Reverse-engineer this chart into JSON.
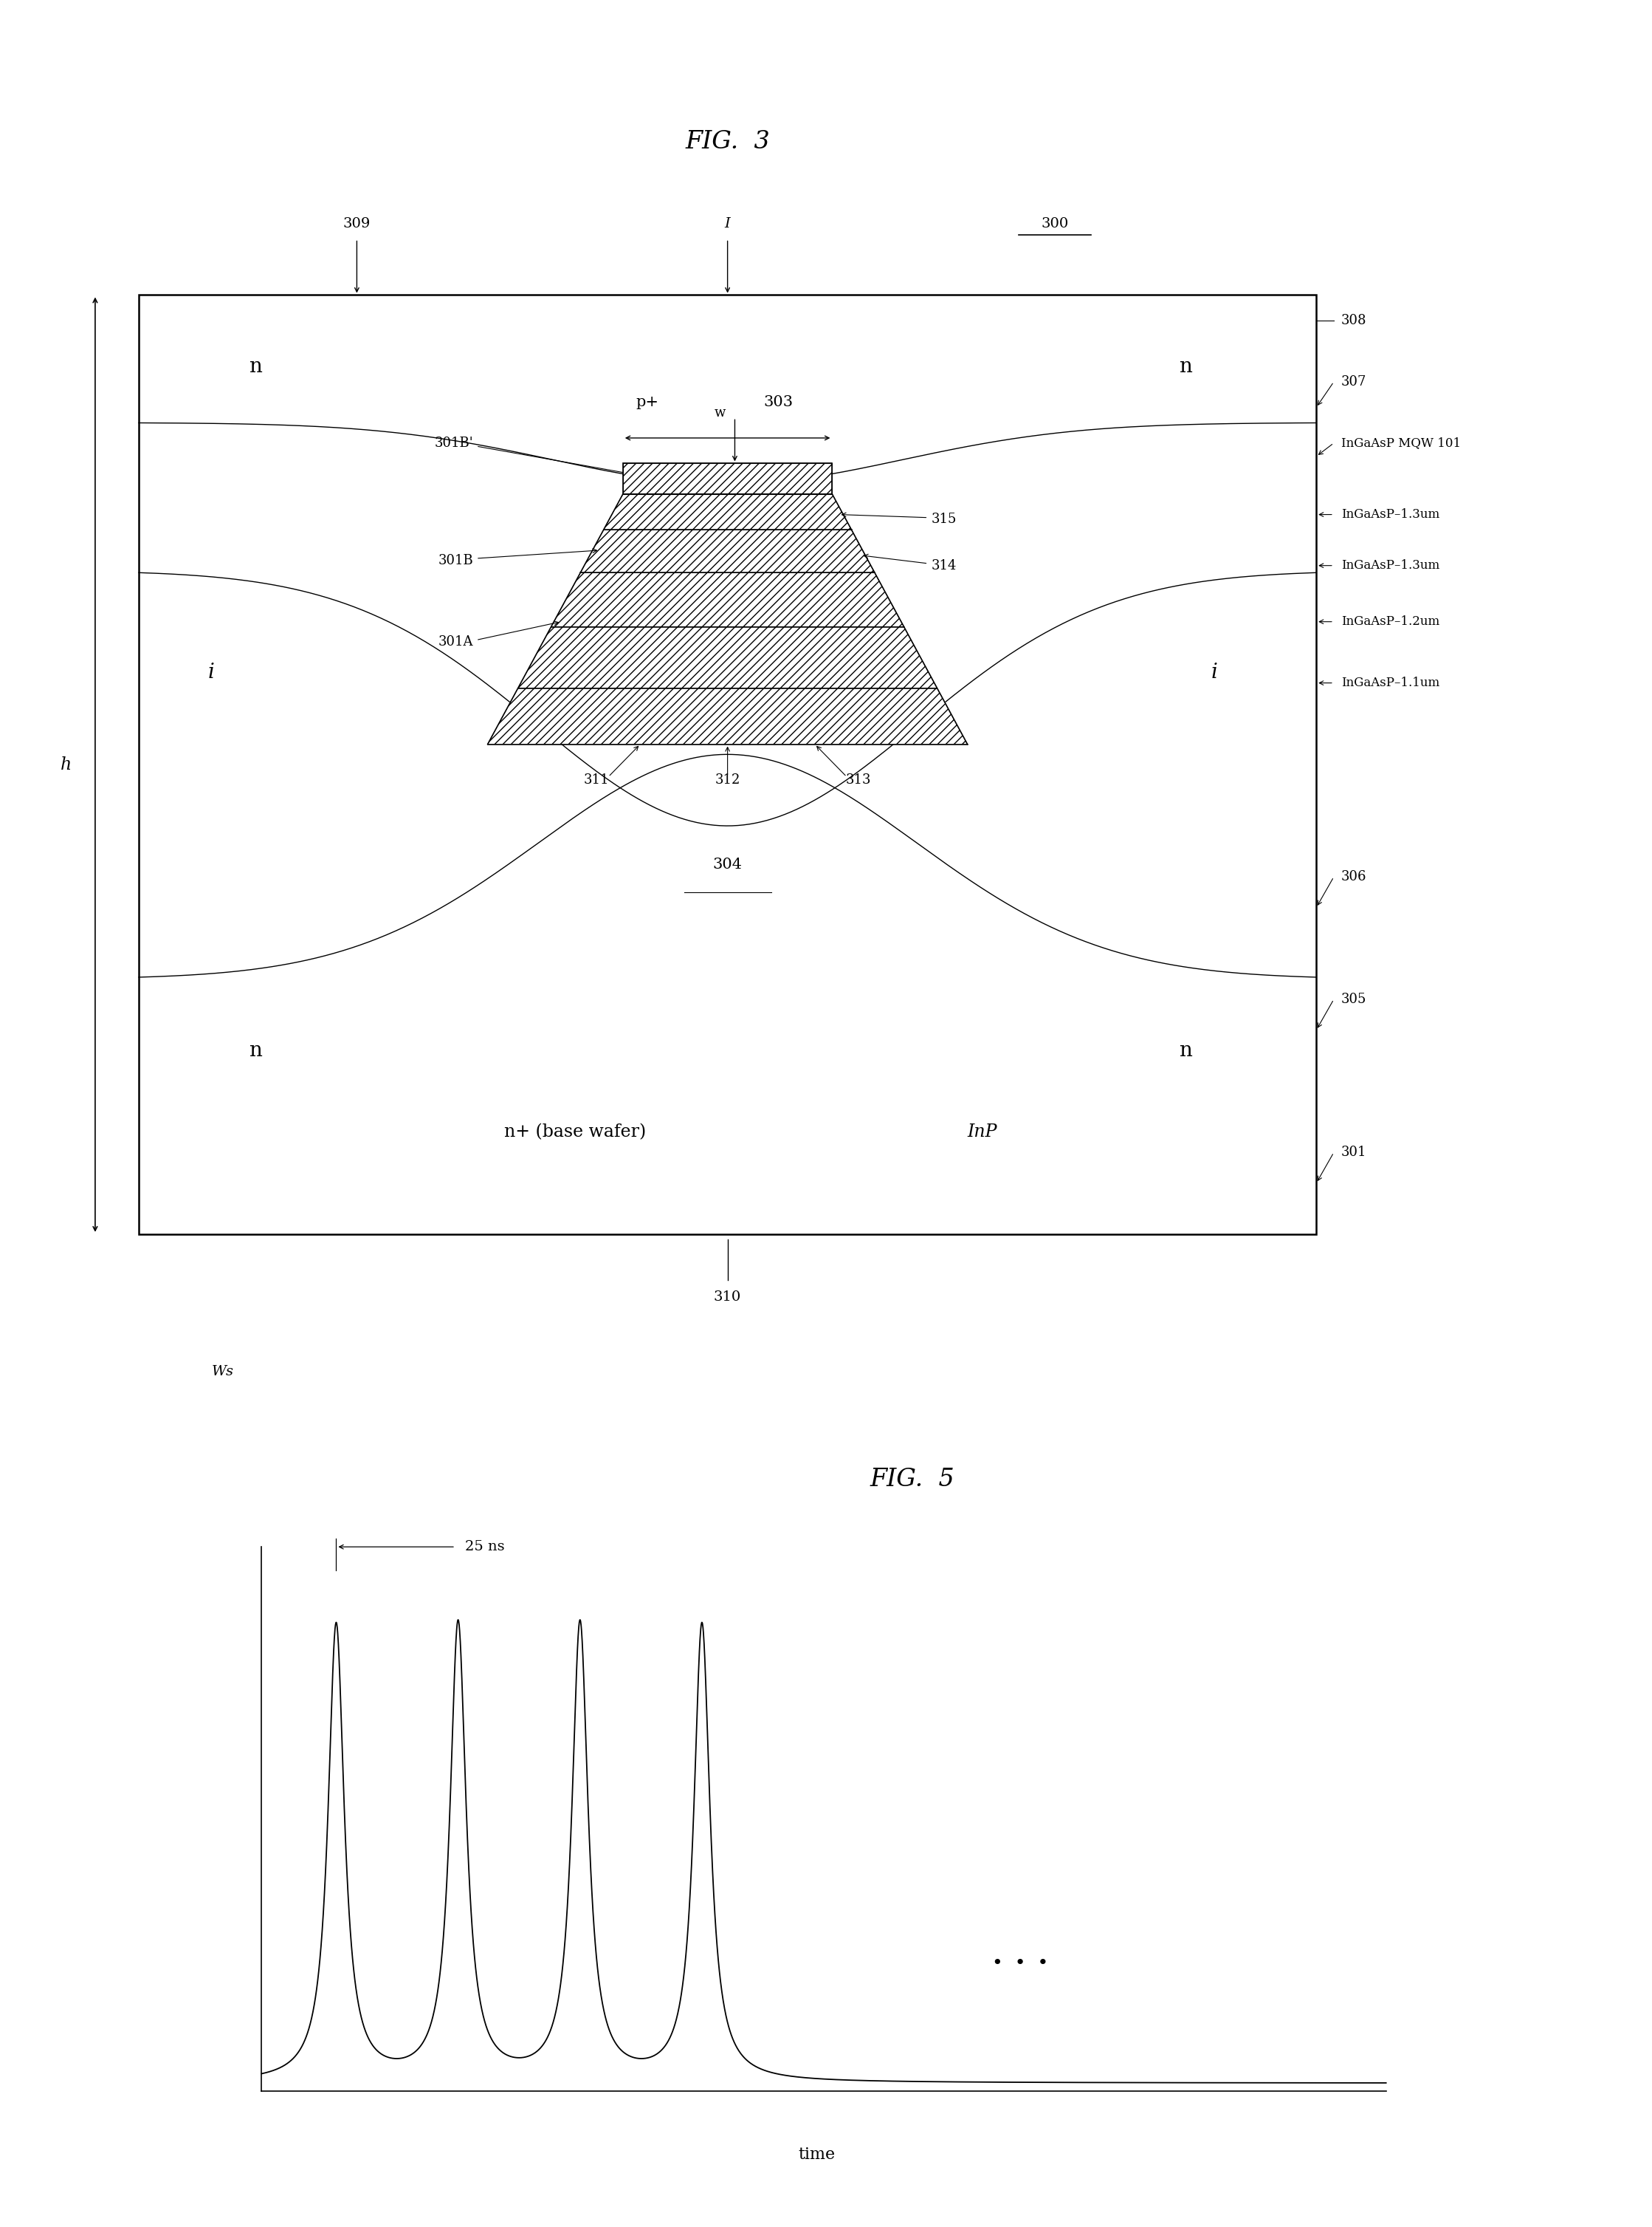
{
  "fig3_title": "FIG.  3",
  "fig5_title": "FIG.  5",
  "bg_color": "#ffffff",
  "line_color": "#000000",
  "labels": {
    "309": "309",
    "I": "I",
    "300": "300",
    "308": "308",
    "307": "307",
    "ingaasp_mqw": "InGaAsP MQW 101",
    "ingaasp_13a": "InGaAsP–1.3um",
    "ingaasp_13b": "InGaAsP–1.3um",
    "ingaasp_12": "InGaAsP–1.2um",
    "ingaasp_11": "InGaAsP–1.1um",
    "306": "306",
    "305": "305",
    "301": "301",
    "304": "304",
    "n_plus": "n+ (base wafer)",
    "InP": "InP",
    "p_plus": "p+",
    "303": "303",
    "315": "315",
    "314": "314",
    "301B_prime": "301B'",
    "301B": "301B",
    "301A": "301A",
    "311": "311",
    "312": "312",
    "313": "313",
    "310": "310",
    "Ws": "Ws",
    "h": "h",
    "w": "w",
    "p_label": "p",
    "n_left": "n",
    "n_right": "n",
    "i_left": "i",
    "i_right": "i",
    "n_bot_left": "n",
    "n_bot_right": "n",
    "25ns": "25 ns",
    "time": "time"
  }
}
